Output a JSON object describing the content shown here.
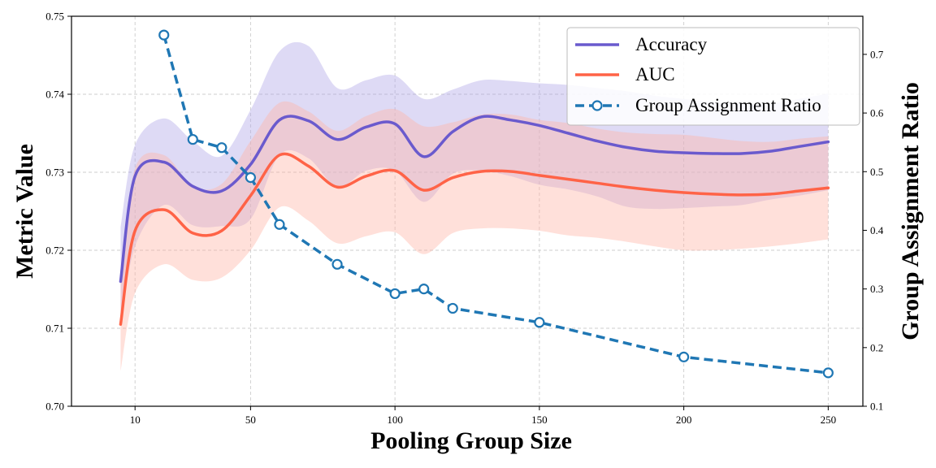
{
  "chart_data": {
    "type": "line",
    "xlabel": "Pooling Group Size",
    "ylabel_left": "Metric Value",
    "ylabel_right": "Group Assignment Ratio",
    "xlim": [
      -12,
      262
    ],
    "ylim_left": [
      0.7,
      0.75
    ],
    "ylim_right": [
      0.1,
      0.765
    ],
    "x_ticks": [
      10,
      50,
      100,
      150,
      200,
      250
    ],
    "x_tick_labels": [
      "10",
      "50",
      "100",
      "150",
      "200",
      "250"
    ],
    "y_left_ticks": [
      0.7,
      0.71,
      0.72,
      0.73,
      0.74,
      0.75
    ],
    "y_left_tick_labels": [
      "0.70",
      "0.71",
      "0.72",
      "0.73",
      "0.74",
      "0.75"
    ],
    "y_right_ticks": [
      0.1,
      0.2,
      0.3,
      0.4,
      0.5,
      0.6,
      0.7
    ],
    "y_right_tick_labels": [
      "0.1",
      "0.2",
      "0.3",
      "0.4",
      "0.5",
      "0.6",
      "0.7"
    ],
    "grid": true,
    "legend_position": "top-right",
    "series": [
      {
        "name": "Accuracy",
        "axis": "left",
        "style": "solid",
        "color": "#6a5acd",
        "band_color": "#b0a8e8",
        "x": [
          5,
          10,
          20,
          30,
          40,
          50,
          60,
          70,
          80,
          90,
          100,
          110,
          120,
          130,
          140,
          150,
          160,
          170,
          180,
          190,
          200,
          210,
          220,
          230,
          240,
          250
        ],
        "values": [
          0.716,
          0.7295,
          0.7313,
          0.7282,
          0.7276,
          0.731,
          0.7367,
          0.7366,
          0.7342,
          0.7358,
          0.7362,
          0.732,
          0.7352,
          0.7371,
          0.7367,
          0.736,
          0.735,
          0.734,
          0.7332,
          0.7327,
          0.7325,
          0.7324,
          0.7324,
          0.7327,
          0.7333,
          0.7339
        ],
        "lower": [
          0.7105,
          0.7205,
          0.7258,
          0.7232,
          0.7231,
          0.724,
          0.7322,
          0.7318,
          0.7281,
          0.7302,
          0.7302,
          0.7262,
          0.7298,
          0.7302,
          0.7295,
          0.7284,
          0.7278,
          0.7269,
          0.7256,
          0.7253,
          0.7254,
          0.7256,
          0.7258,
          0.7265,
          0.727,
          0.7277
        ],
        "upper": [
          0.723,
          0.7335,
          0.7369,
          0.734,
          0.7321,
          0.738,
          0.7455,
          0.7462,
          0.7408,
          0.7418,
          0.7424,
          0.7394,
          0.7406,
          0.7418,
          0.7417,
          0.7414,
          0.7412,
          0.7408,
          0.7404,
          0.7398,
          0.7394,
          0.739,
          0.7388,
          0.7388,
          0.7394,
          0.7401
        ]
      },
      {
        "name": "AUC",
        "axis": "left",
        "style": "solid",
        "color": "#ff6347",
        "band_color": "#ffb4a6",
        "x": [
          5,
          10,
          20,
          30,
          40,
          50,
          60,
          70,
          80,
          90,
          100,
          110,
          120,
          130,
          140,
          150,
          160,
          170,
          180,
          190,
          200,
          210,
          220,
          230,
          240,
          250
        ],
        "values": [
          0.7105,
          0.7225,
          0.7252,
          0.7222,
          0.7225,
          0.727,
          0.7322,
          0.7308,
          0.7281,
          0.7295,
          0.7302,
          0.7277,
          0.7293,
          0.7301,
          0.7301,
          0.7296,
          0.7291,
          0.7286,
          0.7281,
          0.7277,
          0.7274,
          0.7272,
          0.7271,
          0.7272,
          0.7276,
          0.728
        ],
        "lower": [
          0.7045,
          0.7145,
          0.7182,
          0.7162,
          0.7165,
          0.72,
          0.7255,
          0.7238,
          0.7209,
          0.7218,
          0.7223,
          0.7195,
          0.7222,
          0.7228,
          0.7228,
          0.7225,
          0.7219,
          0.7216,
          0.7211,
          0.7205,
          0.72,
          0.72,
          0.7202,
          0.7205,
          0.7209,
          0.7214
        ],
        "upper": [
          0.7165,
          0.7305,
          0.7322,
          0.7282,
          0.7285,
          0.734,
          0.7389,
          0.7378,
          0.7353,
          0.7372,
          0.7381,
          0.7359,
          0.7364,
          0.7374,
          0.7374,
          0.7367,
          0.7363,
          0.7356,
          0.7351,
          0.7349,
          0.7348,
          0.7344,
          0.734,
          0.7339,
          0.7343,
          0.7346
        ]
      },
      {
        "name": "Group Assignment Ratio",
        "axis": "right",
        "style": "dashed",
        "marker": "circle",
        "color": "#1f77b4",
        "x": [
          20,
          30,
          40,
          50,
          60,
          80,
          100,
          110,
          120,
          150,
          200,
          250
        ],
        "values": [
          0.733,
          0.555,
          0.541,
          0.49,
          0.41,
          0.342,
          0.292,
          0.3,
          0.267,
          0.243,
          0.184,
          0.157
        ]
      }
    ]
  }
}
